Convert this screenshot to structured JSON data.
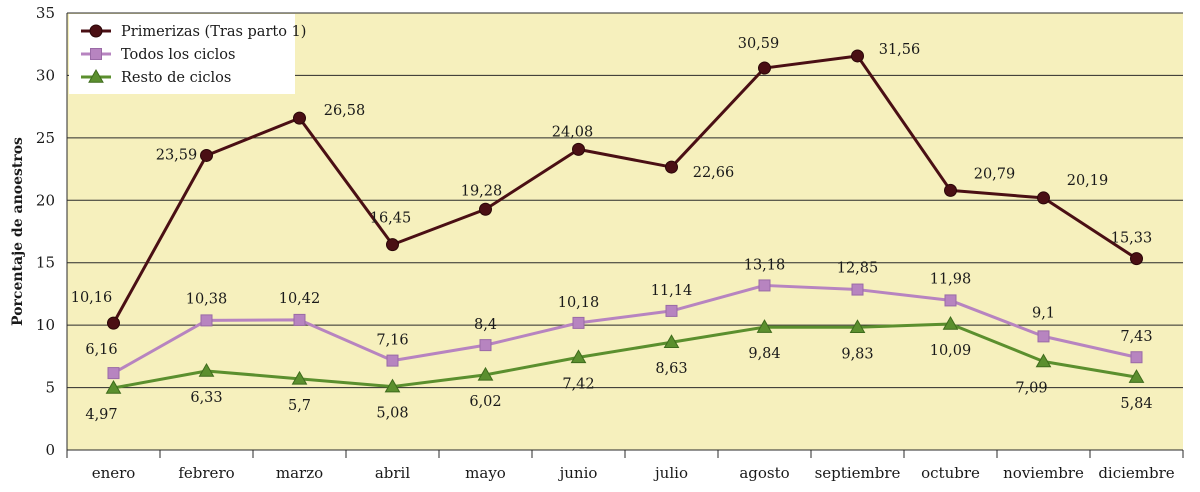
{
  "chart_data": {
    "type": "line",
    "title": "",
    "xlabel": "",
    "ylabel": "Porcentaje de anoestros",
    "ylim": [
      0,
      35
    ],
    "yticks": [
      0,
      5,
      10,
      15,
      20,
      25,
      30,
      35
    ],
    "grid": true,
    "legend_position": "top-left",
    "categories": [
      "enero",
      "febrero",
      "marzo",
      "abril",
      "mayo",
      "junio",
      "julio",
      "agosto",
      "septiembre",
      "octubre",
      "noviembre",
      "diciembre"
    ],
    "series": [
      {
        "name": "Primerizas (Tras parto 1)",
        "marker": "circle",
        "color": "#4a0f14",
        "values": [
          10.16,
          23.59,
          26.58,
          16.45,
          19.28,
          24.08,
          22.66,
          30.59,
          31.56,
          20.79,
          20.19,
          15.33
        ],
        "labels": [
          "10,16",
          "23,59",
          "26,58",
          "16,45",
          "19,28",
          "24,08",
          "22,66",
          "30,59",
          "31,56",
          "20,79",
          "20,19",
          "15,33"
        ]
      },
      {
        "name": "Todos los ciclos",
        "marker": "square",
        "color": "#b784c0",
        "values": [
          6.16,
          10.38,
          10.42,
          7.16,
          8.4,
          10.18,
          11.14,
          13.18,
          12.85,
          11.98,
          9.1,
          7.43
        ],
        "labels": [
          "6,16",
          "10,38",
          "10,42",
          "7,16",
          "8,4",
          "10,18",
          "11,14",
          "13,18",
          "12,85",
          "11,98",
          "9,1",
          "7,43"
        ]
      },
      {
        "name": "Resto de ciclos",
        "marker": "triangle",
        "color": "#5b8f2e",
        "values": [
          4.97,
          6.33,
          5.7,
          5.08,
          6.02,
          7.42,
          8.63,
          9.84,
          9.83,
          10.09,
          7.09,
          5.84
        ],
        "labels": [
          "4,97",
          "6,33",
          "5,7",
          "5,08",
          "6,02",
          "7,42",
          "8,63",
          "9,84",
          "9,83",
          "10,09",
          "7,09",
          "5,84"
        ]
      }
    ],
    "colors": {
      "plot_background": "#f6f0bd",
      "gridline": "#2a2a2a",
      "legend_background": "#ffffff"
    }
  }
}
